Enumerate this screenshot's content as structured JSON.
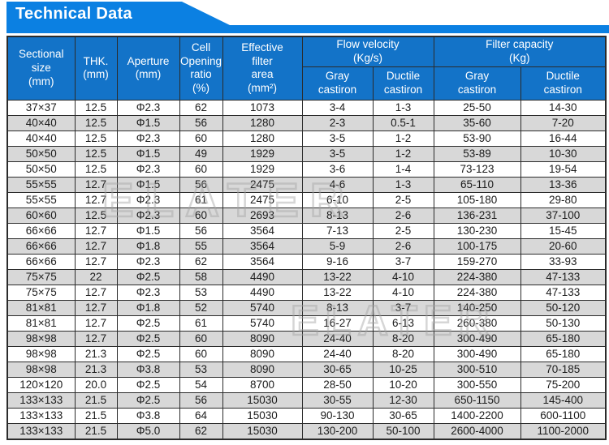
{
  "banner": {
    "title": "Technical Data"
  },
  "watermark": {
    "text": "ELATER"
  },
  "colors": {
    "banner_blue": "#0b80e2",
    "header_blue": "#1373c8",
    "alt_row_gray": "#d8d8d8"
  },
  "table": {
    "headers": {
      "sectional": "Sectional\nsize\n(mm)",
      "thk": "THK.\n(mm)",
      "aperture": "Aperture\n(mm)",
      "cell_opening": "Cell\nOpening\nratio\n(%)",
      "effective_area": "Effective\nfilter\narea\n(mm²)"
    },
    "groups": {
      "flow_velocity": "Flow velocity\n(Kg/s)",
      "filter_capacity": "Filter capacity\n(Kg)"
    },
    "subheaders": {
      "gray": "Gray\ncastiron",
      "ductile": "Ductile\ncastiron"
    },
    "rows": [
      [
        "37×37",
        "12.5",
        "Φ2.3",
        "62",
        "1073",
        "3-4",
        "1-3",
        "25-50",
        "14-30"
      ],
      [
        "40×40",
        "12.5",
        "Φ1.5",
        "56",
        "1280",
        "2-3",
        "0.5-1",
        "35-60",
        "7-20"
      ],
      [
        "40×40",
        "12.5",
        "Φ2.3",
        "60",
        "1280",
        "3-5",
        "1-2",
        "53-90",
        "16-44"
      ],
      [
        "50×50",
        "12.5",
        "Φ1.5",
        "49",
        "1929",
        "3-5",
        "1-2",
        "53-89",
        "10-30"
      ],
      [
        "50×50",
        "12.5",
        "Φ2.3",
        "60",
        "1929",
        "3-6",
        "1-4",
        "73-123",
        "19-54"
      ],
      [
        "55×55",
        "12.7",
        "Φ1.5",
        "56",
        "2475",
        "4-6",
        "1-3",
        "65-110",
        "13-36"
      ],
      [
        "55×55",
        "12.7",
        "Φ2.3",
        "61",
        "2475",
        "6-10",
        "2-5",
        "105-180",
        "29-80"
      ],
      [
        "60×60",
        "12.5",
        "Φ2.3",
        "60",
        "2693",
        "8-13",
        "2-6",
        "136-231",
        "37-100"
      ],
      [
        "66×66",
        "12.7",
        "Φ1.5",
        "56",
        "3564",
        "7-13",
        "2-5",
        "130-230",
        "15-45"
      ],
      [
        "66×66",
        "12.7",
        "Φ1.8",
        "55",
        "3564",
        "5-9",
        "2-6",
        "100-175",
        "20-60"
      ],
      [
        "66×66",
        "12.7",
        "Φ2.3",
        "62",
        "3564",
        "9-16",
        "3-7",
        "159-270",
        "33-93"
      ],
      [
        "75×75",
        "22",
        "Φ2.5",
        "58",
        "4490",
        "13-22",
        "4-10",
        "224-380",
        "47-133"
      ],
      [
        "75×75",
        "12.7",
        "Φ2.3",
        "53",
        "4490",
        "13-22",
        "4-10",
        "224-380",
        "47-133"
      ],
      [
        "81×81",
        "12.7",
        "Φ1.8",
        "52",
        "5740",
        "8-13",
        "3-7",
        "140-250",
        "50-120"
      ],
      [
        "81×81",
        "12.7",
        "Φ2.5",
        "61",
        "5740",
        "16-27",
        "6-13",
        "260-380",
        "50-130"
      ],
      [
        "98×98",
        "12.7",
        "Φ2.5",
        "60",
        "8090",
        "24-40",
        "8-20",
        "300-490",
        "65-180"
      ],
      [
        "98×98",
        "21.3",
        "Φ2.5",
        "60",
        "8090",
        "24-40",
        "8-20",
        "300-490",
        "65-180"
      ],
      [
        "98×98",
        "21.3",
        "Φ3.8",
        "53",
        "8090",
        "30-65",
        "10-25",
        "300-510",
        "70-185"
      ],
      [
        "120×120",
        "20.0",
        "Φ2.5",
        "54",
        "8700",
        "28-50",
        "10-20",
        "300-550",
        "75-200"
      ],
      [
        "133×133",
        "21.5",
        "Φ2.5",
        "56",
        "15030",
        "30-55",
        "12-30",
        "650-1150",
        "145-400"
      ],
      [
        "133×133",
        "21.5",
        "Φ3.8",
        "64",
        "15030",
        "90-130",
        "30-65",
        "1400-2200",
        "600-1100"
      ],
      [
        "133×133",
        "21.5",
        "Φ5.0",
        "62",
        "15030",
        "130-200",
        "50-100",
        "2600-4000",
        "1100-2000"
      ]
    ]
  }
}
